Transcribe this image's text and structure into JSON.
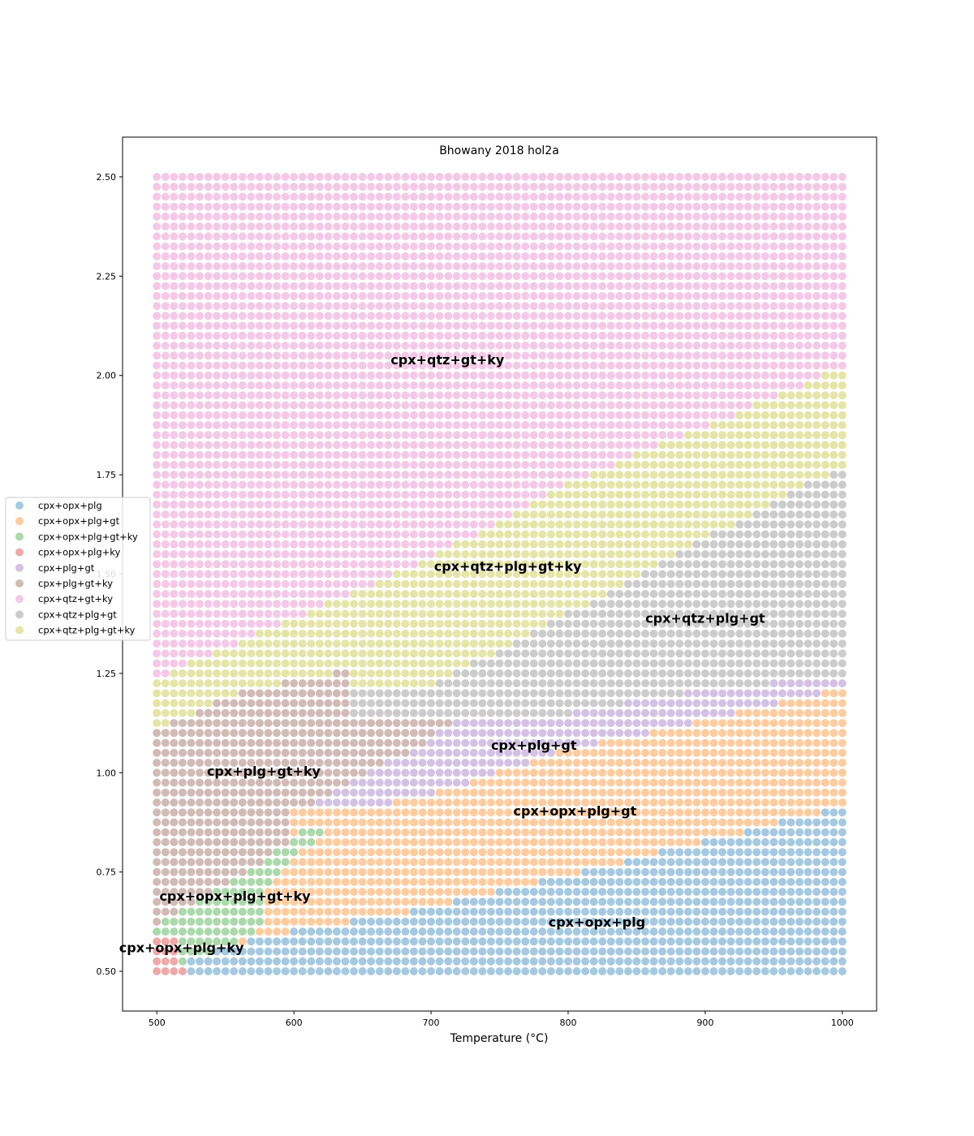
{
  "chart_data": {
    "type": "scatter",
    "title": "Bhowany 2018 hol2a",
    "xlabel": "Temperature (°C)",
    "ylabel": "",
    "xlim": [
      475,
      1025
    ],
    "ylim": [
      0.4,
      2.6
    ],
    "xticks": [
      500,
      600,
      700,
      800,
      900,
      1000
    ],
    "xtick_labels": [
      "500",
      "600",
      "700",
      "800",
      "900",
      "1000"
    ],
    "yticks": [
      0.5,
      0.75,
      1.0,
      1.25,
      1.5,
      1.75,
      2.0,
      2.25,
      2.5
    ],
    "ytick_labels": [
      "0.50",
      "0.75",
      "1.00",
      "1.25",
      "1.50",
      "1.75",
      "2.00",
      "2.25",
      "2.50"
    ],
    "grid": false,
    "legend_position": "left",
    "grid_spacing": {
      "temperature_step": 6.25,
      "pressure_step": 0.025,
      "t_min": 500,
      "t_max": 1000,
      "p_min": 0.5,
      "p_max": 2.5
    },
    "series": [
      {
        "name": "cpx+opx+plg",
        "color": "#1f77b4"
      },
      {
        "name": "cpx+opx+plg+gt",
        "color": "#ff7f0e"
      },
      {
        "name": "cpx+opx+plg+gt+ky",
        "color": "#2ca02c"
      },
      {
        "name": "cpx+opx+plg+ky",
        "color": "#d62728"
      },
      {
        "name": "cpx+plg+gt",
        "color": "#9467bd"
      },
      {
        "name": "cpx+plg+gt+ky",
        "color": "#8c564b"
      },
      {
        "name": "cpx+qtz+gt+ky",
        "color": "#e377c2"
      },
      {
        "name": "cpx+qtz+plg+gt",
        "color": "#7f7f7f"
      },
      {
        "name": "cpx+qtz+plg+gt+ky",
        "color": "#bcbd22"
      }
    ],
    "annotations": [
      {
        "text": "cpx+qtz+gt+ky",
        "x": 712,
        "y": 2.04
      },
      {
        "text": "cpx+qtz+plg+gt+ky",
        "x": 756,
        "y": 1.52
      },
      {
        "text": "cpx+qtz+plg+gt",
        "x": 900,
        "y": 1.39
      },
      {
        "text": "cpx+plg+gt",
        "x": 775,
        "y": 1.07
      },
      {
        "text": "cpx+plg+gt+ky",
        "x": 578,
        "y": 1.005
      },
      {
        "text": "cpx+opx+plg+gt",
        "x": 805,
        "y": 0.905
      },
      {
        "text": "cpx+opx+plg+gt+ky",
        "x": 557,
        "y": 0.69
      },
      {
        "text": "cpx+opx+plg",
        "x": 821,
        "y": 0.625
      },
      {
        "text": "cpx+opx+plg+ky",
        "x": 518,
        "y": 0.56
      }
    ]
  }
}
